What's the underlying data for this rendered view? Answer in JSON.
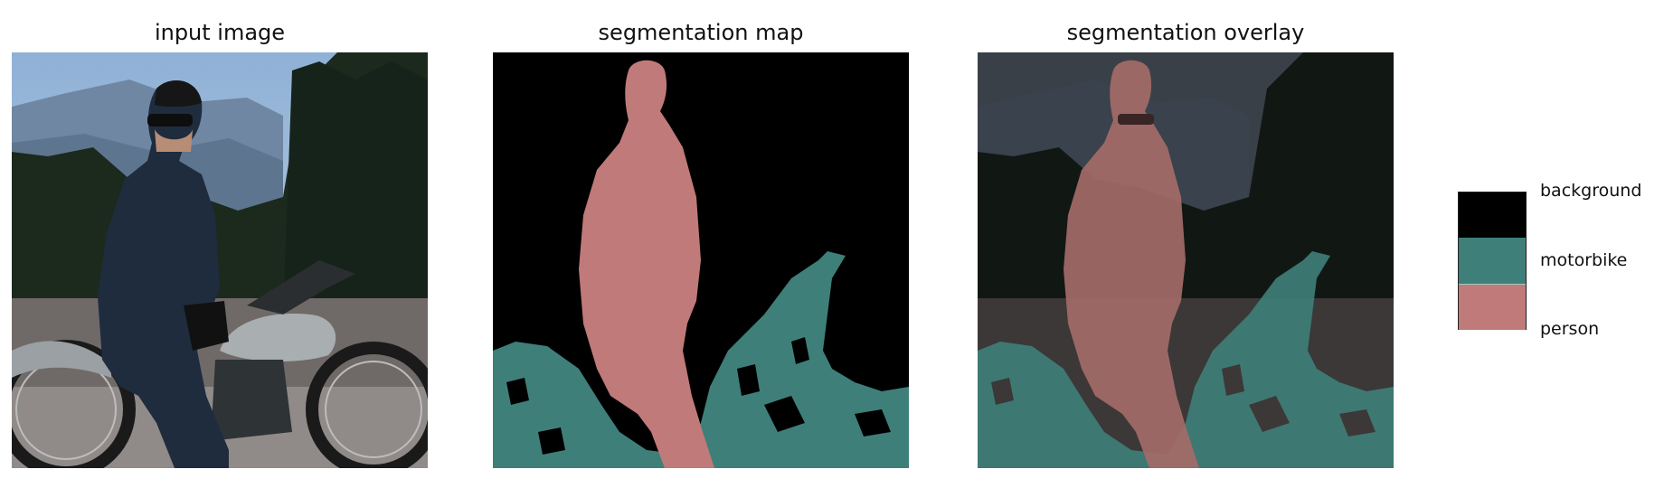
{
  "panels": [
    {
      "title": "input image"
    },
    {
      "title": "segmentation map"
    },
    {
      "title": "segmentation overlay"
    }
  ],
  "legend": [
    {
      "label": "background",
      "color": "#000000"
    },
    {
      "label": "motorbike",
      "color": "#3f7f7a"
    },
    {
      "label": "person",
      "color": "#c07a7a"
    }
  ]
}
